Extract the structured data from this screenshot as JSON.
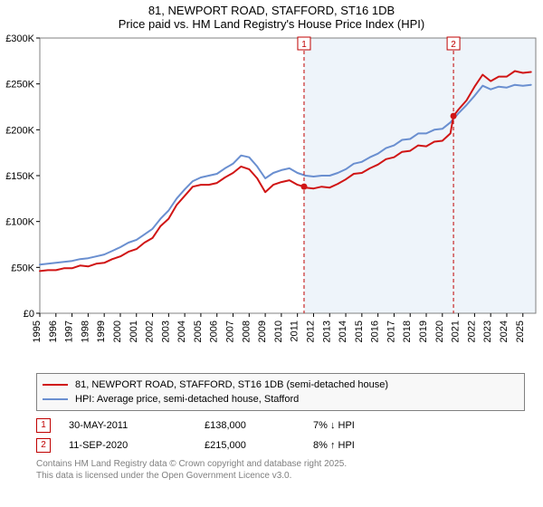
{
  "title_line1": "81, NEWPORT ROAD, STAFFORD, ST16 1DB",
  "title_line2": "Price paid vs. HM Land Registry's House Price Index (HPI)",
  "chart": {
    "type": "line",
    "background_color": "#ffffff",
    "band_color": "#eef4fa",
    "grid_color": "#808080",
    "axis_color": "#000000",
    "x_start_year": 1995,
    "x_end_year": 2025.8,
    "years": [
      1995,
      1996,
      1997,
      1998,
      1999,
      2000,
      2001,
      2002,
      2003,
      2004,
      2005,
      2006,
      2007,
      2008,
      2009,
      2010,
      2011,
      2012,
      2013,
      2014,
      2015,
      2016,
      2017,
      2018,
      2019,
      2020,
      2021,
      2022,
      2023,
      2024,
      2025
    ],
    "ylim": [
      0,
      300000
    ],
    "yticks": [
      0,
      50000,
      100000,
      150000,
      200000,
      250000,
      300000
    ],
    "ytick_labels": [
      "£0",
      "£50K",
      "£100K",
      "£150K",
      "£200K",
      "£250K",
      "£300K"
    ],
    "band_start_year": 2011.41,
    "series": [
      {
        "name": "price_paid",
        "label": "81, NEWPORT ROAD, STAFFORD, ST16 1DB (semi-detached house)",
        "color": "#d01515",
        "line_width": 2,
        "points": [
          [
            1995.0,
            46000
          ],
          [
            1995.5,
            47000
          ],
          [
            1996.0,
            47000
          ],
          [
            1996.5,
            49000
          ],
          [
            1997.0,
            49000
          ],
          [
            1997.5,
            52000
          ],
          [
            1998.0,
            51000
          ],
          [
            1998.5,
            54000
          ],
          [
            1999.0,
            55000
          ],
          [
            1999.5,
            59000
          ],
          [
            2000.0,
            62000
          ],
          [
            2000.5,
            67000
          ],
          [
            2001.0,
            70000
          ],
          [
            2001.5,
            77000
          ],
          [
            2002.0,
            82000
          ],
          [
            2002.5,
            95000
          ],
          [
            2003.0,
            103000
          ],
          [
            2003.5,
            118000
          ],
          [
            2004.0,
            128000
          ],
          [
            2004.5,
            138000
          ],
          [
            2005.0,
            140000
          ],
          [
            2005.5,
            140000
          ],
          [
            2006.0,
            142000
          ],
          [
            2006.5,
            148000
          ],
          [
            2007.0,
            153000
          ],
          [
            2007.5,
            160000
          ],
          [
            2008.0,
            157000
          ],
          [
            2008.5,
            147000
          ],
          [
            2009.0,
            132000
          ],
          [
            2009.5,
            140000
          ],
          [
            2010.0,
            143000
          ],
          [
            2010.5,
            145000
          ],
          [
            2011.0,
            140000
          ],
          [
            2011.41,
            138000
          ],
          [
            2011.5,
            137000
          ],
          [
            2012.0,
            136000
          ],
          [
            2012.5,
            138000
          ],
          [
            2013.0,
            137000
          ],
          [
            2013.5,
            141000
          ],
          [
            2014.0,
            146000
          ],
          [
            2014.5,
            152000
          ],
          [
            2015.0,
            153000
          ],
          [
            2015.5,
            158000
          ],
          [
            2016.0,
            162000
          ],
          [
            2016.5,
            168000
          ],
          [
            2017.0,
            170000
          ],
          [
            2017.5,
            176000
          ],
          [
            2018.0,
            177000
          ],
          [
            2018.5,
            183000
          ],
          [
            2019.0,
            182000
          ],
          [
            2019.5,
            187000
          ],
          [
            2020.0,
            188000
          ],
          [
            2020.5,
            196000
          ],
          [
            2020.69,
            215000
          ],
          [
            2021.0,
            222000
          ],
          [
            2021.5,
            232000
          ],
          [
            2022.0,
            247000
          ],
          [
            2022.5,
            260000
          ],
          [
            2023.0,
            253000
          ],
          [
            2023.5,
            258000
          ],
          [
            2024.0,
            258000
          ],
          [
            2024.5,
            264000
          ],
          [
            2025.0,
            262000
          ],
          [
            2025.5,
            263000
          ]
        ]
      },
      {
        "name": "hpi",
        "label": "HPI: Average price, semi-detached house, Stafford",
        "color": "#6a8fd0",
        "line_width": 2,
        "points": [
          [
            1995.0,
            53000
          ],
          [
            1995.5,
            54000
          ],
          [
            1996.0,
            55000
          ],
          [
            1996.5,
            56000
          ],
          [
            1997.0,
            57000
          ],
          [
            1997.5,
            59000
          ],
          [
            1998.0,
            60000
          ],
          [
            1998.5,
            62000
          ],
          [
            1999.0,
            64000
          ],
          [
            1999.5,
            68000
          ],
          [
            2000.0,
            72000
          ],
          [
            2000.5,
            77000
          ],
          [
            2001.0,
            80000
          ],
          [
            2001.5,
            86000
          ],
          [
            2002.0,
            92000
          ],
          [
            2002.5,
            103000
          ],
          [
            2003.0,
            112000
          ],
          [
            2003.5,
            125000
          ],
          [
            2004.0,
            135000
          ],
          [
            2004.5,
            144000
          ],
          [
            2005.0,
            148000
          ],
          [
            2005.5,
            150000
          ],
          [
            2006.0,
            152000
          ],
          [
            2006.5,
            158000
          ],
          [
            2007.0,
            163000
          ],
          [
            2007.5,
            172000
          ],
          [
            2008.0,
            170000
          ],
          [
            2008.5,
            160000
          ],
          [
            2009.0,
            147000
          ],
          [
            2009.5,
            153000
          ],
          [
            2010.0,
            156000
          ],
          [
            2010.5,
            158000
          ],
          [
            2011.0,
            153000
          ],
          [
            2011.5,
            150000
          ],
          [
            2012.0,
            149000
          ],
          [
            2012.5,
            150000
          ],
          [
            2013.0,
            150000
          ],
          [
            2013.5,
            153000
          ],
          [
            2014.0,
            157000
          ],
          [
            2014.5,
            163000
          ],
          [
            2015.0,
            165000
          ],
          [
            2015.5,
            170000
          ],
          [
            2016.0,
            174000
          ],
          [
            2016.5,
            180000
          ],
          [
            2017.0,
            183000
          ],
          [
            2017.5,
            189000
          ],
          [
            2018.0,
            190000
          ],
          [
            2018.5,
            196000
          ],
          [
            2019.0,
            196000
          ],
          [
            2019.5,
            200000
          ],
          [
            2020.0,
            201000
          ],
          [
            2020.5,
            208000
          ],
          [
            2021.0,
            218000
          ],
          [
            2021.5,
            227000
          ],
          [
            2022.0,
            237000
          ],
          [
            2022.5,
            248000
          ],
          [
            2023.0,
            244000
          ],
          [
            2023.5,
            247000
          ],
          [
            2024.0,
            246000
          ],
          [
            2024.5,
            249000
          ],
          [
            2025.0,
            248000
          ],
          [
            2025.5,
            249000
          ]
        ]
      }
    ],
    "markers": [
      {
        "badge": "1",
        "year": 2011.41,
        "color": "#c00000"
      },
      {
        "badge": "2",
        "year": 2020.69,
        "color": "#c00000"
      }
    ]
  },
  "legend": [
    {
      "color": "#d01515",
      "label": "81, NEWPORT ROAD, STAFFORD, ST16 1DB (semi-detached house)"
    },
    {
      "color": "#6a8fd0",
      "label": "HPI: Average price, semi-detached house, Stafford"
    }
  ],
  "marker_rows": [
    {
      "badge": "1",
      "date": "30-MAY-2011",
      "price": "£138,000",
      "diff": "7% ↓ HPI"
    },
    {
      "badge": "2",
      "date": "11-SEP-2020",
      "price": "£215,000",
      "diff": "8% ↑ HPI"
    }
  ],
  "footer": {
    "line1": "Contains HM Land Registry data © Crown copyright and database right 2025.",
    "line2": "This data is licensed under the Open Government Licence v3.0."
  }
}
